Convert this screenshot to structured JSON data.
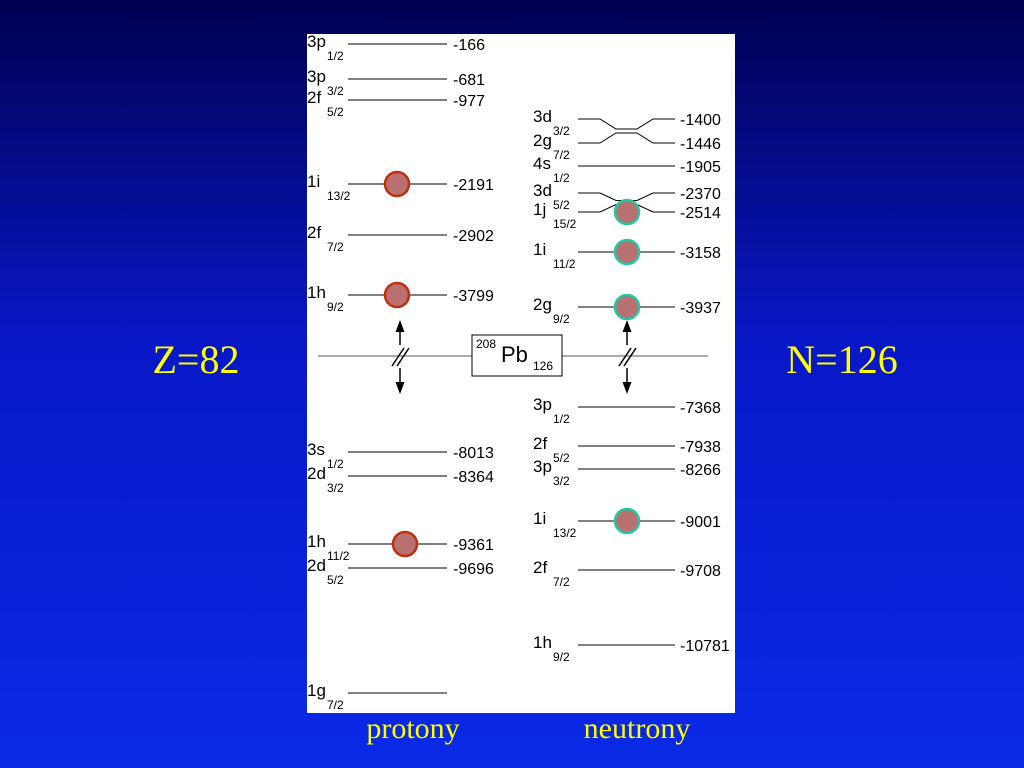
{
  "left_label": "Z=82",
  "right_label": "N=126",
  "nucleus": {
    "mass": "208",
    "symbol": "Pb",
    "neutrons": "126"
  },
  "protons": {
    "caption": "protony",
    "levels": [
      {
        "orbital": "3p",
        "j": "1/2",
        "energy": "-166",
        "filled": false
      },
      {
        "orbital": "3p",
        "j": "3/2",
        "energy": "-681",
        "filled": false
      },
      {
        "orbital": "2f",
        "j": "5/2",
        "energy": "-977",
        "filled": false
      },
      {
        "orbital": "1i",
        "j": "13/2",
        "energy": "-2191",
        "filled": true
      },
      {
        "orbital": "2f",
        "j": "7/2",
        "energy": "-2902",
        "filled": false
      },
      {
        "orbital": "1h",
        "j": "9/2",
        "energy": "-3799",
        "filled": true
      },
      {
        "orbital": "3s",
        "j": "1/2",
        "energy": "-8013",
        "filled": false
      },
      {
        "orbital": "2d",
        "j": "3/2",
        "energy": "-8364",
        "filled": false
      },
      {
        "orbital": "1h",
        "j": "11/2",
        "energy": "-9361",
        "filled": true
      },
      {
        "orbital": "2d",
        "j": "5/2",
        "energy": "-9696",
        "filled": false
      },
      {
        "orbital": "1g",
        "j": "7/2",
        "filled": false
      }
    ]
  },
  "neutrons": {
    "caption": "neutrony",
    "levels": [
      {
        "orbital": "3d",
        "j": "3/2",
        "energy": "-1400",
        "filled": false
      },
      {
        "orbital": "2g",
        "j": "7/2",
        "energy": "-1446",
        "filled": false
      },
      {
        "orbital": "4s",
        "j": "1/2",
        "energy": "-1905",
        "filled": false
      },
      {
        "orbital": "3d",
        "j": "5/2",
        "energy": "-2370",
        "filled": false
      },
      {
        "orbital": "1j",
        "j": "15/2",
        "energy": "-2514",
        "filled": true
      },
      {
        "orbital": "1i",
        "j": "11/2",
        "energy": "-3158",
        "filled": true
      },
      {
        "orbital": "2g",
        "j": "9/2",
        "energy": "-3937",
        "filled": true
      },
      {
        "orbital": "3p",
        "j": "1/2",
        "energy": "-7368",
        "filled": false
      },
      {
        "orbital": "2f",
        "j": "5/2",
        "energy": "-7938",
        "filled": false
      },
      {
        "orbital": "3p",
        "j": "3/2",
        "energy": "-8266",
        "filled": false
      },
      {
        "orbital": "1i",
        "j": "13/2",
        "energy": "-9001",
        "filled": true
      },
      {
        "orbital": "2f",
        "j": "7/2",
        "energy": "-9708",
        "filled": false
      },
      {
        "orbital": "1h",
        "j": "9/2",
        "energy": "-10781",
        "filled": false
      }
    ]
  }
}
